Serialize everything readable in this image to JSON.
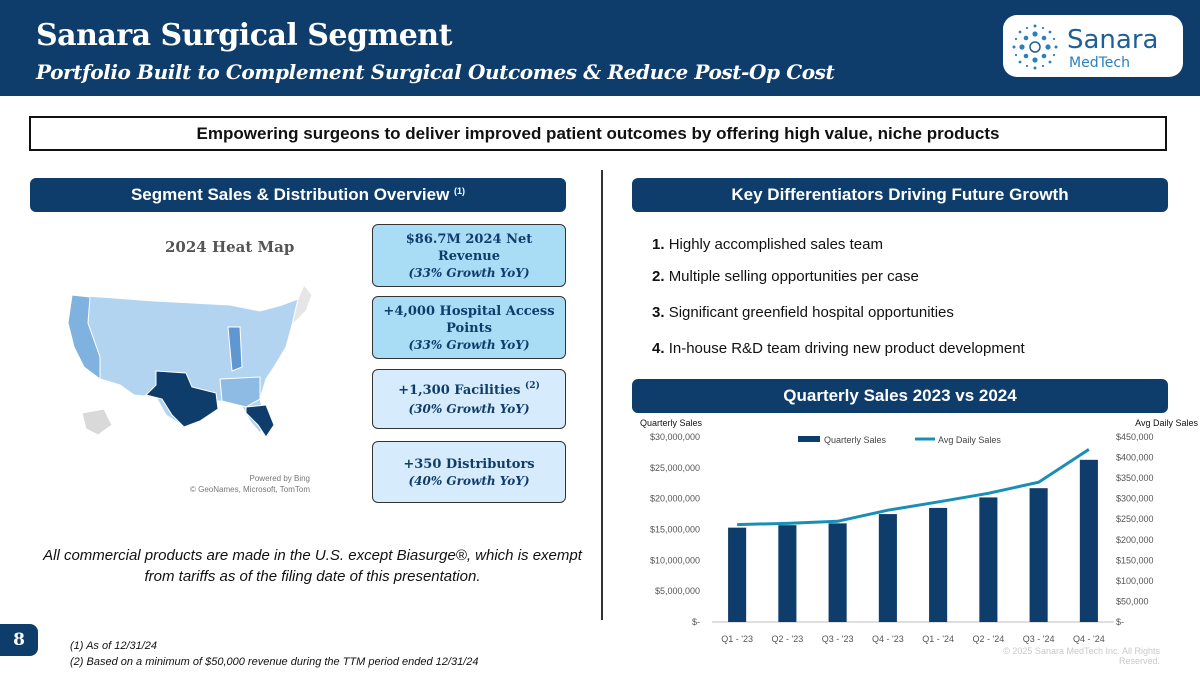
{
  "header": {
    "title": "Sanara Surgical Segment",
    "subtitle": "Portfolio Built to Complement Surgical Outcomes & Reduce Post-Op Cost"
  },
  "logo": {
    "name": "Sanara",
    "sub": "MedTech"
  },
  "banner": "Empowering surgeons to deliver improved patient outcomes by offering high value, niche products",
  "left": {
    "section_title": "Segment Sales & Distribution Overview",
    "section_sup": "(1)",
    "map_title": "2024 Heat Map",
    "map_credit_1": "Powered by Bing",
    "map_credit_2": "© GeoNames, Microsoft, TomTom",
    "stats": [
      {
        "main": "$86.7M 2024 Net Revenue",
        "growth": "(33% Growth YoY)"
      },
      {
        "main": "+4,000 Hospital Access Points",
        "growth": "(33% Growth YoY)"
      },
      {
        "main": "+1,300 Facilities",
        "sup": "(2)",
        "growth": "(30% Growth YoY)"
      },
      {
        "main": "+350 Distributors",
        "growth": "(40% Growth YoY)"
      }
    ],
    "note": "All commercial products are made in the U.S. except Biasurge®, which is exempt from tariffs as of the filing date of this presentation."
  },
  "right": {
    "diff_title": "Key Differentiators Driving Future Growth",
    "differentiators": [
      {
        "num": "1.",
        "text": "Highly accomplished sales team"
      },
      {
        "num": "2.",
        "text": "Multiple selling opportunities per case"
      },
      {
        "num": "3.",
        "text": "Significant greenfield hospital opportunities"
      },
      {
        "num": "4.",
        "text": "In-house R&D team driving new product development"
      }
    ],
    "chart_title": "Quarterly Sales 2023 vs 2024"
  },
  "chart_data": {
    "type": "bar",
    "title": "Quarterly Sales 2023 vs 2024",
    "categories": [
      "Q1 - '23",
      "Q2 - '23",
      "Q3 - '23",
      "Q4 - '23",
      "Q1 - '24",
      "Q2 - '24",
      "Q3 - '24",
      "Q4 - '24"
    ],
    "series": [
      {
        "name": "Quarterly Sales",
        "kind": "bar",
        "axis": "left",
        "color": "#0f3d6b",
        "values": [
          15300000,
          15700000,
          16000000,
          17500000,
          18500000,
          20200000,
          21700000,
          26300000
        ]
      },
      {
        "name": "Avg Daily Sales",
        "kind": "line",
        "axis": "right",
        "color": "#1a8fb5",
        "values": [
          237000,
          240000,
          245000,
          272000,
          292000,
          313000,
          340000,
          420000
        ]
      }
    ],
    "ylabel_left": "Quarterly Sales",
    "ylabel_right": "Avg Daily Sales",
    "ylim_left": [
      0,
      30000000
    ],
    "ylim_right": [
      0,
      450000
    ],
    "yticks_left": [
      "$-",
      "$5,000,000",
      "$10,000,000",
      "$15,000,000",
      "$20,000,000",
      "$25,000,000",
      "$30,000,000"
    ],
    "yticks_right": [
      "$-",
      "$50,000",
      "$100,000",
      "$150,000",
      "$200,000",
      "$250,000",
      "$300,000",
      "$350,000",
      "$400,000",
      "$450,000"
    ],
    "legend_position": "top-center"
  },
  "footnotes": [
    "(1)  As of 12/31/24",
    "(2)  Based on a minimum of $50,000 revenue during the TTM period ended 12/31/24"
  ],
  "page_number": "8",
  "copyright": "© 2025 Sanara MedTech Inc. All Rights Reserved.",
  "colors": {
    "brand": "#0f3d6b",
    "line": "#1a8fb5",
    "stat_fill_1": "#a9dcf5",
    "stat_fill_2": "#d6ebfb"
  }
}
